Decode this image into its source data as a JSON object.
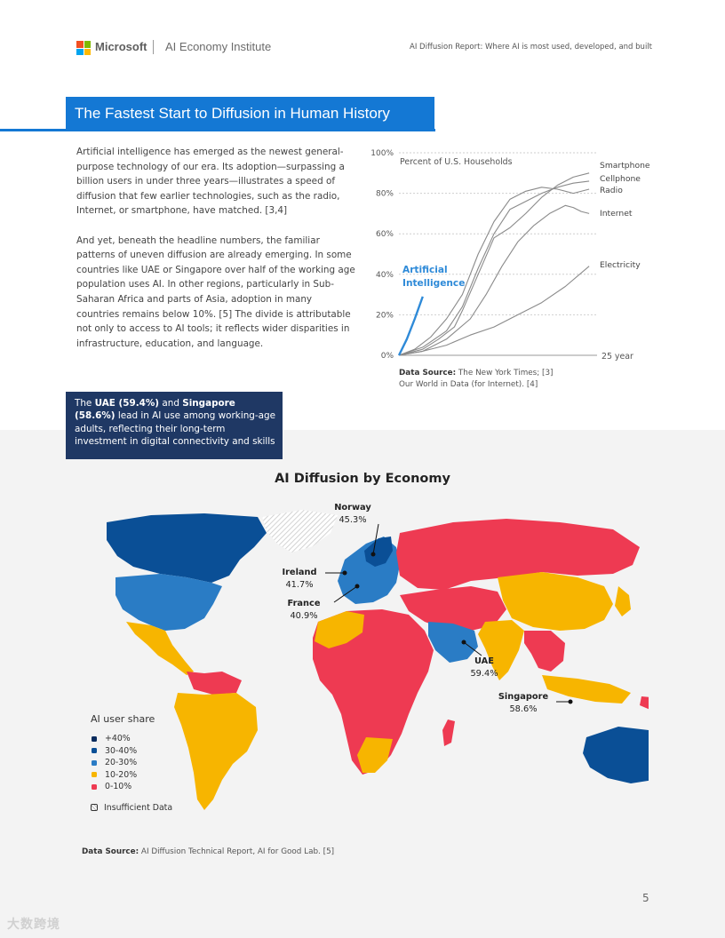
{
  "header": {
    "brand": "Microsoft",
    "institute": "AI Economy Institute",
    "report_title": "AI Diffusion Report: Where AI is most used, developed, and built",
    "logo_colors": [
      "#f25022",
      "#7fba00",
      "#00a4ef",
      "#ffb900"
    ]
  },
  "section": {
    "title": "The Fastest Start to Diffusion in Human History"
  },
  "body": {
    "paragraph1": "Artificial intelligence has emerged as the newest general-purpose technology of our era. Its adoption—surpassing a billion users in under three years—illustrates a speed of diffusion that few earlier technologies, such as the radio, Internet, or smartphone, have matched. [3,4]",
    "paragraph2": "And yet, beneath the headline numbers, the familiar patterns of uneven diffusion are already emerging. In some countries like UAE or Singapore over half of the working age population uses AI. In other regions, particularly in Sub-Saharan Africa and parts of Asia, adoption in many countries remains below 10%. [5] The divide is attributable not only to access to AI tools; it reflects wider disparities in infrastructure, education, and language."
  },
  "chart_data": {
    "type": "line",
    "title": "",
    "subtitle": "Percent of U.S. Households",
    "xlabel": "",
    "ylabel": "",
    "x_end_label": "25 year",
    "xlim": [
      0,
      25
    ],
    "ylim": [
      0,
      100
    ],
    "y_ticks": [
      "0%",
      "20%",
      "40%",
      "60%",
      "80%",
      "100%"
    ],
    "grid": true,
    "series": [
      {
        "name": "Smartphone",
        "color": "#8a8a8a",
        "x": [
          0,
          3,
          5,
          7,
          8,
          10,
          12,
          14,
          16,
          18,
          20,
          22,
          24
        ],
        "y": [
          0,
          3,
          8,
          14,
          22,
          40,
          58,
          63,
          70,
          78,
          84,
          88,
          90
        ]
      },
      {
        "name": "Cellphone",
        "color": "#8a8a8a",
        "x": [
          0,
          3,
          6,
          8,
          10,
          12,
          14,
          16,
          18,
          20,
          22,
          24
        ],
        "y": [
          0,
          4,
          12,
          24,
          43,
          60,
          72,
          76,
          80,
          83,
          85,
          86
        ]
      },
      {
        "name": "Radio",
        "color": "#8a8a8a",
        "x": [
          0,
          2,
          4,
          6,
          8,
          10,
          12,
          14,
          16,
          18,
          20,
          22,
          24
        ],
        "y": [
          0,
          3,
          9,
          18,
          30,
          50,
          66,
          77,
          81,
          83,
          82,
          80,
          82
        ]
      },
      {
        "name": "Internet",
        "color": "#8a8a8a",
        "x": [
          0,
          3,
          6,
          9,
          11,
          13,
          15,
          17,
          19,
          21,
          22,
          23,
          24
        ],
        "y": [
          0,
          2,
          8,
          18,
          30,
          44,
          56,
          64,
          70,
          74,
          73,
          71,
          70
        ]
      },
      {
        "name": "Electricity",
        "color": "#8a8a8a",
        "x": [
          0,
          3,
          6,
          9,
          12,
          15,
          18,
          21,
          24
        ],
        "y": [
          0,
          2,
          5,
          10,
          14,
          20,
          26,
          34,
          44
        ]
      },
      {
        "name": "Artificial Intelligence",
        "color": "#2e8ad8",
        "x": [
          0,
          1,
          2,
          3
        ],
        "y": [
          0,
          8,
          18,
          29
        ]
      }
    ],
    "data_source": {
      "label": "Data Source:",
      "line1": "The New York Times; [3]",
      "line2": "Our World in Data (for Internet). [4]"
    }
  },
  "callout": {
    "uae": "UAE (59.4%)",
    "and": " and ",
    "singapore": "Singapore (58.6%)",
    "rest": " lead in AI use among working-age adults, reflecting their long-term investment in digital connectivity and skills"
  },
  "map": {
    "title": "AI Diffusion by Economy",
    "labels": [
      {
        "country": "Norway",
        "value": "45.3%"
      },
      {
        "country": "Ireland",
        "value": "41.7%"
      },
      {
        "country": "France",
        "value": "40.9%"
      },
      {
        "country": "UAE",
        "value": "59.4%"
      },
      {
        "country": "Singapore",
        "value": "58.6%"
      }
    ],
    "legend": {
      "title": "AI user share",
      "items": [
        {
          "label": "+40%",
          "color": "#0b2c5e"
        },
        {
          "label": "30-40%",
          "color": "#0a4f96"
        },
        {
          "label": "20-30%",
          "color": "#2a7cc5"
        },
        {
          "label": "10-20%",
          "color": "#f7b500"
        },
        {
          "label": "0-10%",
          "color": "#ee3a52"
        }
      ],
      "insufficient": "Insufficient Data"
    },
    "source": {
      "label": "Data Source:",
      "text": "AI Diffusion Technical Report, AI for Good Lab. [5]"
    }
  },
  "footer": {
    "page_number": "5",
    "watermark": "大数跨境"
  }
}
